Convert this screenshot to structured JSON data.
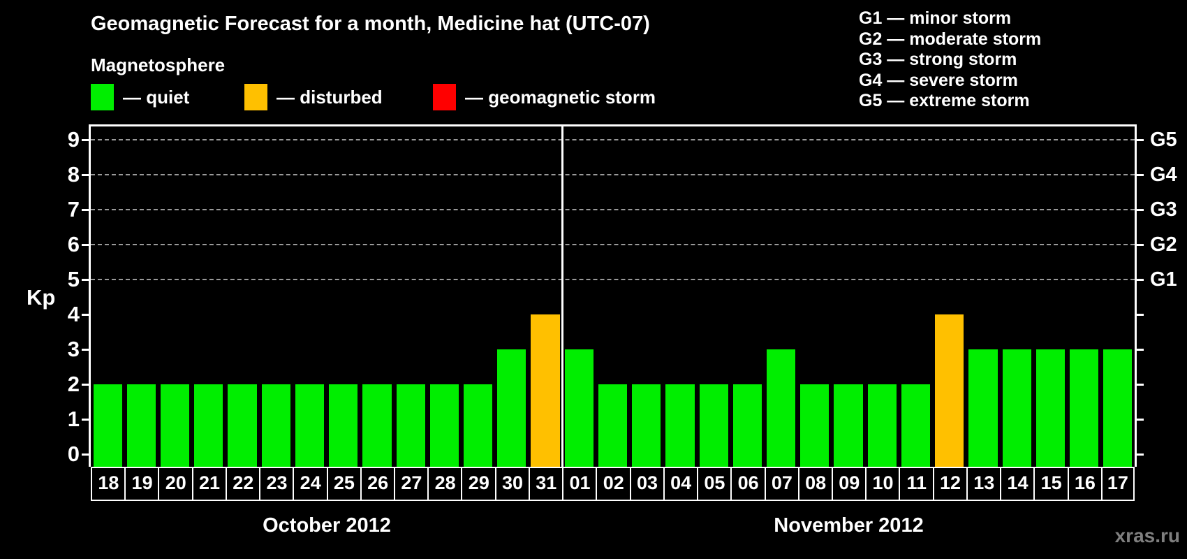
{
  "title": "Geomagnetic Forecast for a month, Medicine hat (UTC-07)",
  "subtitle": "Magnetosphere",
  "legend": {
    "items": [
      {
        "name": "quiet",
        "label": "— quiet",
        "color": "#00ee00"
      },
      {
        "name": "disturbed",
        "label": "— disturbed",
        "color": "#ffc000"
      },
      {
        "name": "storm",
        "label": "— geomagnetic storm",
        "color": "#ff0000"
      }
    ]
  },
  "storm_scale_legend": [
    "G1 — minor storm",
    "G2 — moderate storm",
    "G3 — strong storm",
    "G4 — severe storm",
    "G5 — extreme storm"
  ],
  "watermark": "xras.ru",
  "colors": {
    "quiet": "#00ee00",
    "disturbed": "#ffc000",
    "storm": "#ff0000",
    "grid": "#9a9a9a",
    "axis": "#ffffff",
    "background": "#000000"
  },
  "chart_data": {
    "type": "bar",
    "title": "Geomagnetic Forecast for a month, Medicine hat (UTC-07)",
    "ylabel": "Kp",
    "ylim": [
      0,
      9.4
    ],
    "yticks": [
      0,
      1,
      2,
      3,
      4,
      5,
      6,
      7,
      8,
      9
    ],
    "grid_dashed_at_kp": [
      5,
      6,
      7,
      8,
      9
    ],
    "right_axis_labels": [
      {
        "kp": 5,
        "label": "G1"
      },
      {
        "kp": 6,
        "label": "G2"
      },
      {
        "kp": 7,
        "label": "G3"
      },
      {
        "kp": 8,
        "label": "G4"
      },
      {
        "kp": 9,
        "label": "G5"
      }
    ],
    "color_rule": {
      "quiet_kp_max": 3,
      "disturbed_kp": 4,
      "storm_kp_min": 5
    },
    "months": [
      {
        "label": "October 2012",
        "days": [
          "18",
          "19",
          "20",
          "21",
          "22",
          "23",
          "24",
          "25",
          "26",
          "27",
          "28",
          "29",
          "30",
          "31"
        ],
        "values": [
          2,
          2,
          2,
          2,
          2,
          2,
          2,
          2,
          2,
          2,
          2,
          2,
          3,
          4
        ]
      },
      {
        "label": "November 2012",
        "days": [
          "01",
          "02",
          "03",
          "04",
          "05",
          "06",
          "07",
          "08",
          "09",
          "10",
          "11",
          "12",
          "13",
          "14",
          "15",
          "16",
          "17"
        ],
        "values": [
          3,
          2,
          2,
          2,
          2,
          2,
          3,
          2,
          2,
          2,
          2,
          4,
          3,
          3,
          3,
          3,
          3
        ]
      }
    ]
  }
}
